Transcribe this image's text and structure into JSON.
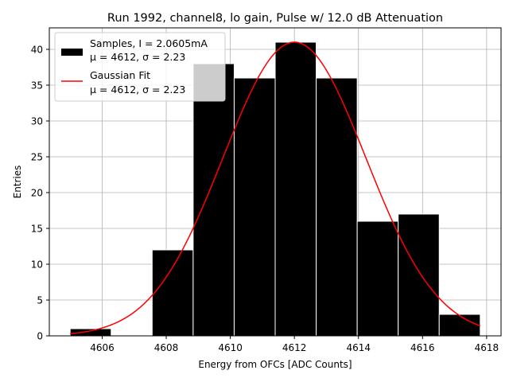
{
  "chart_data": {
    "type": "bar",
    "title": "Run 1992, channel8, lo gain, Pulse w/ 12.0 dB Attenuation",
    "xlabel": "Energy from OFCs [ADC Counts]",
    "ylabel": "Entries",
    "xlim": [
      4604.35,
      4618.45
    ],
    "ylim": [
      0,
      43
    ],
    "xticks": [
      4606,
      4608,
      4610,
      4612,
      4614,
      4616,
      4618
    ],
    "yticks": [
      0,
      5,
      10,
      15,
      20,
      25,
      30,
      35,
      40
    ],
    "grid": true,
    "histogram": {
      "name": "Samples, I = 2.0605mA",
      "bin_edges": [
        4605.0,
        4606.28,
        4607.56,
        4608.84,
        4610.12,
        4611.4,
        4612.68,
        4613.96,
        4615.24,
        4616.52,
        4617.8
      ],
      "counts": [
        1,
        0,
        12,
        38,
        36,
        41,
        36,
        16,
        17,
        3
      ],
      "color": "#000000",
      "edgecolor": "#ffffff"
    },
    "fit": {
      "name": "Gaussian Fit",
      "type": "gaussian",
      "amplitude": 41,
      "mu": 4612,
      "sigma": 2.23,
      "x_range": [
        4605.0,
        4617.8
      ],
      "color": "#ff0000"
    },
    "legend": {
      "position": "top-left",
      "entries": [
        {
          "line1": "Samples, I = 2.0605mA",
          "line2_prefix": "μ = 4612, σ = 2.23"
        },
        {
          "line1": "Gaussian Fit",
          "line2_prefix": "μ = 4612, σ = 2.23"
        }
      ]
    }
  }
}
